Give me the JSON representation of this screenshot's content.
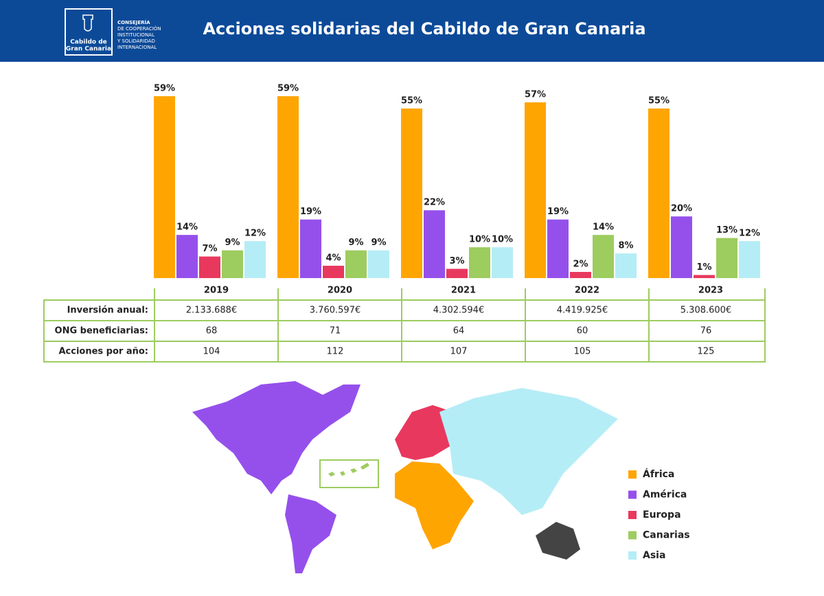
{
  "header": {
    "logo": [
      "Cabildo de",
      "Gran Canaria"
    ],
    "department": [
      "CONSEJERÍA",
      "DE COOPERACIÓN",
      "INSTITUCIONAL",
      "Y SOLIDARIDAD",
      "INTERNACIONAL"
    ]
  },
  "chart_data": {
    "type": "bar",
    "title": "Acciones solidarias del Cabildo de Gran Canaria",
    "categories": [
      "2019",
      "2020",
      "2021",
      "2022",
      "2023"
    ],
    "series": [
      {
        "name": "África",
        "color": "#ffa502",
        "values": [
          59,
          59,
          55,
          57,
          55
        ],
        "value_labels": [
          "59%",
          "59%",
          "55%",
          "57%",
          "55%"
        ]
      },
      {
        "name": "América",
        "color": "#9550ec",
        "values": [
          14,
          19,
          22,
          19,
          20
        ],
        "value_labels": [
          "14%",
          "19%",
          "22%",
          "19%",
          "20%"
        ]
      },
      {
        "name": "Europa",
        "color": "#e8385e",
        "values": [
          7,
          4,
          3,
          2,
          1
        ],
        "value_labels": [
          "7%",
          "4%",
          "3%",
          "2%",
          "1%"
        ]
      },
      {
        "name": "Canarias",
        "color": "#9dcc5f",
        "values": [
          9,
          9,
          10,
          14,
          13
        ],
        "value_labels": [
          "9%",
          "9%",
          "10%",
          "14%",
          "13%"
        ]
      },
      {
        "name": "Asia",
        "color": "#b5edf6",
        "values": [
          12,
          9,
          10,
          8,
          12
        ],
        "value_labels": [
          "12%",
          "9%",
          "10%",
          "8%",
          "12%"
        ]
      }
    ],
    "legend": "right"
  },
  "table": {
    "rows": [
      [
        "Inversión anual:",
        "2.133.688€",
        "3.760.597€",
        "4.302.594€",
        "4.419.925€",
        "5.308.600€"
      ],
      [
        "ONG beneficiarias:",
        68,
        71,
        64,
        60,
        76
      ],
      [
        "Acciones por año:",
        104,
        112,
        107,
        105,
        125
      ]
    ]
  }
}
